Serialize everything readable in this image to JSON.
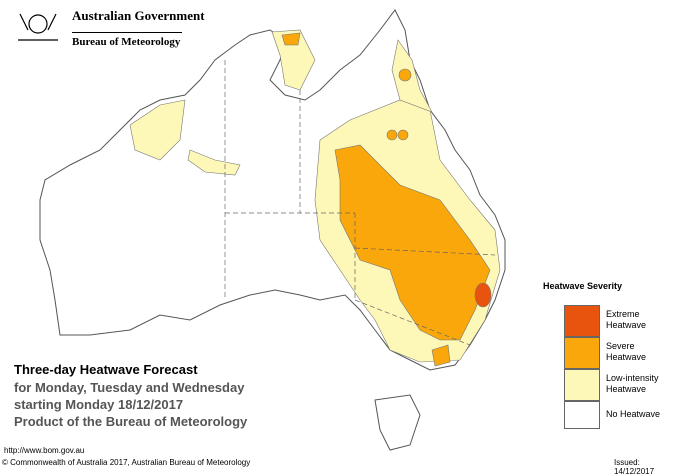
{
  "header": {
    "government": "Australian Government",
    "agency": "Bureau of Meteorology"
  },
  "title": {
    "main": "Three-day Heatwave Forecast",
    "line1": "for Monday, Tuesday and Wednesday",
    "line2": "starting Monday 18/12/2017",
    "line3": "Product of the Bureau of Meteorology"
  },
  "legend": {
    "title": "Heatwave Severity",
    "items": [
      {
        "label": "Extreme Heatwave",
        "color": "#e8530e"
      },
      {
        "label": "Severe Heatwave",
        "color": "#f9a70b"
      },
      {
        "label": "Low-intensity Heatwave",
        "color": "#fdf8b7"
      },
      {
        "label": "No Heatwave",
        "color": "#ffffff"
      }
    ]
  },
  "footer": {
    "url": "http://www.bom.gov.au",
    "copyright": "© Commonwealth of Australia 2017, Australian Bureau of Meteorology",
    "issued": "Issued: 14/12/2017"
  }
}
